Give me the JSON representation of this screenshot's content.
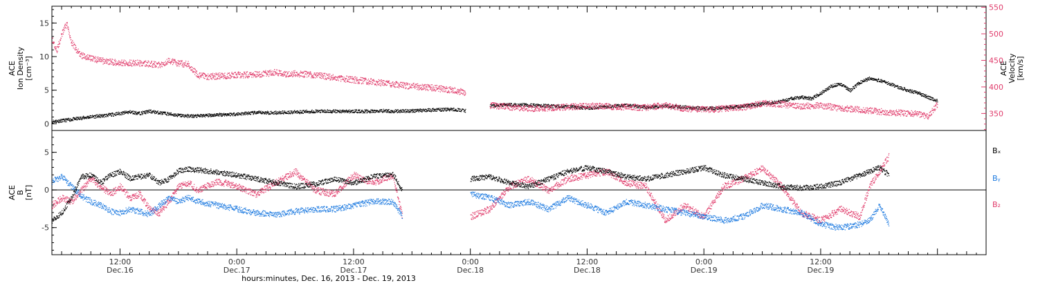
{
  "chart_data": [
    {
      "type": "scatter",
      "panel": "top",
      "x_unit": "hours since Dec.16 00:00",
      "xlim": [
        5.0,
        101.0
      ],
      "left_axis": {
        "title_lines": [
          "ACE",
          "Ion Density",
          "[cm⁻³]"
        ],
        "ylim": [
          -1,
          17.5
        ],
        "ticks": [
          0,
          5,
          10,
          15
        ],
        "color": "#000000"
      },
      "right_axis": {
        "title_lines": [
          "ACE",
          "Velocity",
          "[km/s]"
        ],
        "ylim": [
          318,
          552
        ],
        "ticks": [
          350,
          400,
          450,
          500,
          550
        ],
        "color": "#e03a6a"
      },
      "series": [
        {
          "color": "#000000",
          "axis": "left",
          "x": [
            5.0,
            6.0,
            7.0,
            8.0,
            9.0,
            10.0,
            11.0,
            12.0,
            13.0,
            14.0,
            15.0,
            16.0,
            17.0,
            18.0,
            19.0,
            20.0,
            22.0,
            24.0,
            26.0,
            28.0,
            30.0,
            32.0,
            34.0,
            36.0,
            38.0,
            39.0,
            40.0,
            42.0,
            44.0,
            46.0,
            47.5,
            48.0,
            50.0,
            52.0,
            54.0,
            56.0,
            58.0,
            60.0,
            62.0,
            64.0,
            66.0,
            68.0,
            70.0,
            72.0,
            74.0,
            76.0,
            78.0,
            80.0,
            81.0,
            82.0,
            83.0,
            84.0,
            85.0,
            86.0,
            87.0,
            88.0,
            89.0,
            90.0,
            91.0,
            92.0,
            93.0,
            94.0,
            95.0,
            96.0
          ],
          "y": [
            0.4,
            0.5,
            0.7,
            0.9,
            1.1,
            1.2,
            1.4,
            1.6,
            1.8,
            1.6,
            1.9,
            1.7,
            1.5,
            1.3,
            1.2,
            1.2,
            1.4,
            1.5,
            1.7,
            1.7,
            1.8,
            1.9,
            1.9,
            1.9,
            1.9,
            2.0,
            1.9,
            2.0,
            2.1,
            2.2,
            2.0,
            null,
            2.7,
            2.9,
            2.8,
            2.7,
            2.6,
            2.4,
            2.6,
            2.8,
            2.5,
            2.7,
            2.5,
            2.3,
            2.4,
            2.7,
            3.0,
            3.4,
            3.8,
            4.0,
            3.8,
            4.6,
            5.6,
            6.0,
            5.0,
            6.2,
            6.8,
            6.5,
            6.0,
            5.5,
            5.0,
            4.6,
            4.0,
            3.4
          ]
        },
        {
          "color": "#e03a6a",
          "axis": "right",
          "x": [
            5.0,
            5.5,
            6.0,
            6.5,
            7.0,
            7.5,
            8.0,
            9.0,
            10.0,
            11.0,
            12.0,
            13.0,
            14.0,
            15.0,
            16.0,
            17.0,
            18.0,
            19.0,
            20.0,
            21.0,
            22.0,
            24.0,
            26.0,
            28.0,
            29.0,
            30.0,
            32.0,
            34.0,
            36.0,
            38.0,
            40.0,
            42.0,
            44.0,
            46.0,
            47.5,
            48.0,
            50.0,
            52.0,
            54.0,
            56.0,
            58.0,
            60.0,
            62.0,
            64.0,
            66.0,
            68.0,
            70.0,
            72.0,
            74.0,
            76.0,
            78.0,
            80.0,
            82.0,
            84.0,
            86.0,
            88.0,
            90.0,
            92.0,
            94.0,
            95.0,
            96.0
          ],
          "y": [
            490,
            470,
            500,
            520,
            485,
            470,
            460,
            455,
            450,
            448,
            446,
            446,
            445,
            444,
            442,
            450,
            445,
            443,
            422,
            420,
            421,
            423,
            424,
            428,
            425,
            426,
            423,
            418,
            414,
            410,
            406,
            402,
            399,
            395,
            390,
            null,
            366,
            363,
            360,
            361,
            363,
            365,
            364,
            363,
            362,
            366,
            360,
            358,
            360,
            362,
            370,
            368,
            364,
            366,
            360,
            358,
            354,
            352,
            350,
            345,
            368
          ]
        }
      ]
    },
    {
      "type": "scatter",
      "panel": "bottom",
      "x_unit": "hours since Dec.16 00:00",
      "xlim": [
        5.0,
        101.0
      ],
      "left_axis": {
        "title_lines": [
          "ACE",
          "B",
          "[nT]"
        ],
        "ylim": [
          -8.6,
          7.9
        ],
        "ticks": [
          -5,
          0,
          5
        ]
      },
      "legend": [
        "Bₓ",
        "Bᵧ",
        "B₂"
      ],
      "x_axis": {
        "ticks": [
          {
            "hours": 12,
            "time": "12:00",
            "date": "Dec.16"
          },
          {
            "hours": 24,
            "time": "0:00",
            "date": "Dec.17"
          },
          {
            "hours": 36,
            "time": "12:00",
            "date": "Dec.17"
          },
          {
            "hours": 48,
            "time": "0:00",
            "date": "Dec.18"
          },
          {
            "hours": 60,
            "time": "12:00",
            "date": "Dec.18"
          },
          {
            "hours": 72,
            "time": "0:00",
            "date": "Dec.19"
          },
          {
            "hours": 84,
            "time": "12:00",
            "date": "Dec.19"
          }
        ],
        "title": "hours:minutes, Dec. 16, 2013 - Dec. 19, 2013"
      },
      "series": [
        {
          "name": "Bₓ",
          "color": "#000000",
          "x": [
            5.0,
            6.0,
            7.0,
            8.0,
            9.0,
            10.0,
            11.0,
            12.0,
            13.0,
            14.0,
            15.0,
            16.0,
            17.0,
            18.0,
            19.0,
            20.0,
            22.0,
            24.0,
            26.0,
            28.0,
            30.0,
            32.0,
            34.0,
            36.0,
            38.0,
            40.0,
            41.0,
            42.0,
            48.0,
            50.0,
            52.0,
            54.0,
            56.0,
            58.0,
            60.0,
            62.0,
            64.0,
            66.0,
            68.0,
            70.0,
            72.0,
            74.0,
            76.0,
            78.0,
            80.0,
            82.0,
            84.0,
            86.0,
            88.0,
            89.0,
            90.0,
            91.0
          ],
          "y": [
            -4.0,
            -3.0,
            -1.0,
            1.8,
            2.0,
            1.0,
            2.0,
            2.5,
            1.6,
            1.8,
            2.0,
            1.0,
            1.5,
            2.6,
            2.8,
            2.7,
            2.4,
            2.0,
            1.5,
            1.0,
            0.5,
            0.8,
            1.5,
            1.0,
            1.8,
            2.2,
            0.0,
            null,
            1.5,
            1.8,
            1.0,
            0.5,
            1.5,
            2.5,
            3.0,
            2.5,
            1.8,
            1.5,
            2.0,
            2.5,
            3.0,
            2.0,
            1.5,
            1.0,
            0.5,
            0.3,
            0.5,
            1.0,
            2.0,
            2.5,
            3.0,
            2.0
          ]
        },
        {
          "name": "Bᵧ",
          "color": "#1e7be0",
          "x": [
            5.0,
            6.0,
            7.0,
            8.0,
            9.0,
            10.0,
            11.0,
            12.0,
            13.0,
            14.0,
            15.0,
            16.0,
            17.0,
            18.0,
            19.0,
            20.0,
            22.0,
            24.0,
            26.0,
            28.0,
            30.0,
            32.0,
            34.0,
            36.0,
            38.0,
            40.0,
            41.0,
            42.0,
            48.0,
            50.0,
            52.0,
            54.0,
            56.0,
            58.0,
            60.0,
            62.0,
            64.0,
            66.0,
            68.0,
            70.0,
            72.0,
            74.0,
            76.0,
            78.0,
            80.0,
            82.0,
            84.0,
            86.0,
            88.0,
            89.0,
            90.0,
            91.0
          ],
          "y": [
            1.2,
            1.8,
            0.5,
            -0.8,
            -1.5,
            -2.0,
            -2.8,
            -3.0,
            -2.5,
            -2.8,
            -3.2,
            -2.0,
            -1.0,
            -1.5,
            -1.0,
            -1.5,
            -2.0,
            -2.5,
            -3.0,
            -3.2,
            -2.8,
            -2.5,
            -2.5,
            -2.0,
            -1.5,
            -1.5,
            -3.5,
            null,
            -0.5,
            -1.0,
            -2.0,
            -1.5,
            -2.5,
            -1.0,
            -2.0,
            -3.0,
            -1.5,
            -2.0,
            -2.5,
            -3.0,
            -3.5,
            -4.0,
            -3.5,
            -2.0,
            -2.5,
            -3.0,
            -4.5,
            -5.0,
            -4.5,
            -4.0,
            -2.0,
            -4.5
          ]
        },
        {
          "name": "B₂",
          "color": "#e03a6a",
          "x": [
            5.0,
            6.0,
            7.0,
            8.0,
            9.0,
            10.0,
            11.0,
            12.0,
            13.0,
            14.0,
            15.0,
            16.0,
            17.0,
            18.0,
            19.0,
            20.0,
            22.0,
            24.0,
            26.0,
            28.0,
            30.0,
            32.0,
            34.0,
            36.0,
            38.0,
            40.0,
            41.0,
            42.0,
            48.0,
            50.0,
            52.0,
            54.0,
            56.0,
            58.0,
            60.0,
            62.0,
            64.0,
            66.0,
            68.0,
            70.0,
            72.0,
            74.0,
            76.0,
            78.0,
            80.0,
            82.0,
            84.0,
            86.0,
            88.0,
            89.0,
            90.0,
            91.0
          ],
          "y": [
            -2.0,
            -1.0,
            -1.5,
            0.0,
            1.5,
            0.5,
            -0.5,
            0.5,
            -1.0,
            -0.5,
            -2.5,
            -3.0,
            -1.5,
            0.5,
            1.0,
            0.0,
            1.2,
            0.5,
            -0.5,
            1.0,
            2.5,
            0.0,
            -0.5,
            2.0,
            1.0,
            2.0,
            -3.5,
            null,
            -3.5,
            -2.5,
            0.5,
            1.5,
            0.0,
            1.5,
            2.0,
            2.5,
            1.0,
            0.5,
            -4.0,
            -2.0,
            -3.5,
            0.5,
            1.5,
            3.0,
            0.5,
            -3.0,
            -4.0,
            -2.5,
            -3.5,
            0.5,
            2.5,
            4.5
          ]
        }
      ]
    }
  ]
}
